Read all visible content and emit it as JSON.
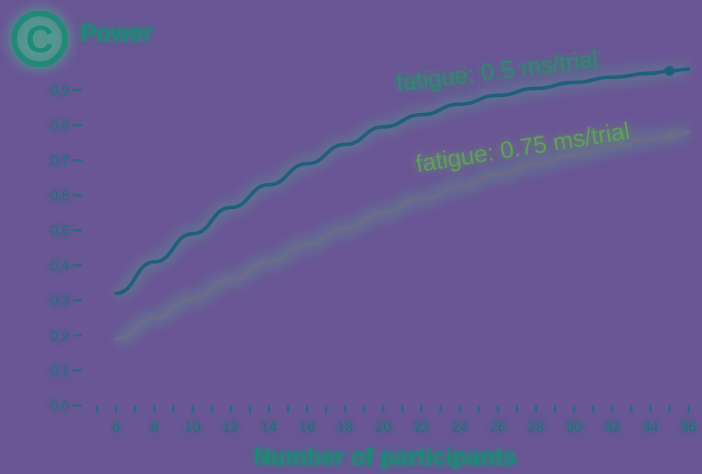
{
  "panel": {
    "letter": "C",
    "title": "Power"
  },
  "colors": {
    "background": "#6a5595",
    "axis": "#1d6f7a",
    "glow": "#3fd08a",
    "panel_badge": "#1f8a76",
    "series_05": "#1e5f7a",
    "series_075": "#6f6a86",
    "label_text_05": "#2f8a70",
    "label_text_075": "#5fa05a"
  },
  "chart_data": {
    "type": "line",
    "title": "Power",
    "xlabel": "Number of participants",
    "ylabel": "",
    "xlim": [
      4.2,
      36
    ],
    "ylim": [
      0,
      1.0
    ],
    "x_ticks": [
      6,
      8,
      10,
      12,
      14,
      16,
      18,
      20,
      22,
      24,
      26,
      28,
      30,
      32,
      34,
      36
    ],
    "y_ticks": [
      "0.0",
      "0.1",
      "0.2",
      "0.3",
      "0.4",
      "0.5",
      "0.6",
      "0.7",
      "0.8",
      "0.9"
    ],
    "grid": false,
    "series": [
      {
        "name": "fatigue: 0.5 ms/trial",
        "x": [
          6,
          8,
          10,
          12,
          14,
          16,
          18,
          20,
          22,
          24,
          26,
          28,
          30,
          32,
          34,
          35,
          36
        ],
        "y": [
          0.32,
          0.41,
          0.49,
          0.565,
          0.63,
          0.69,
          0.745,
          0.795,
          0.83,
          0.86,
          0.885,
          0.905,
          0.922,
          0.937,
          0.948,
          0.955,
          0.96
        ],
        "marker_x": 35,
        "marker_y": 0.955
      },
      {
        "name": "fatigue: 0.75 ms/trial",
        "x": [
          6,
          8,
          10,
          12,
          14,
          16,
          18,
          20,
          22,
          24,
          26,
          28,
          30,
          32,
          34,
          35,
          36
        ],
        "y": [
          0.19,
          0.25,
          0.305,
          0.36,
          0.41,
          0.46,
          0.505,
          0.55,
          0.59,
          0.625,
          0.66,
          0.69,
          0.715,
          0.74,
          0.76,
          0.77,
          0.78
        ],
        "marker_x": 35,
        "marker_y": 0.77
      }
    ]
  }
}
